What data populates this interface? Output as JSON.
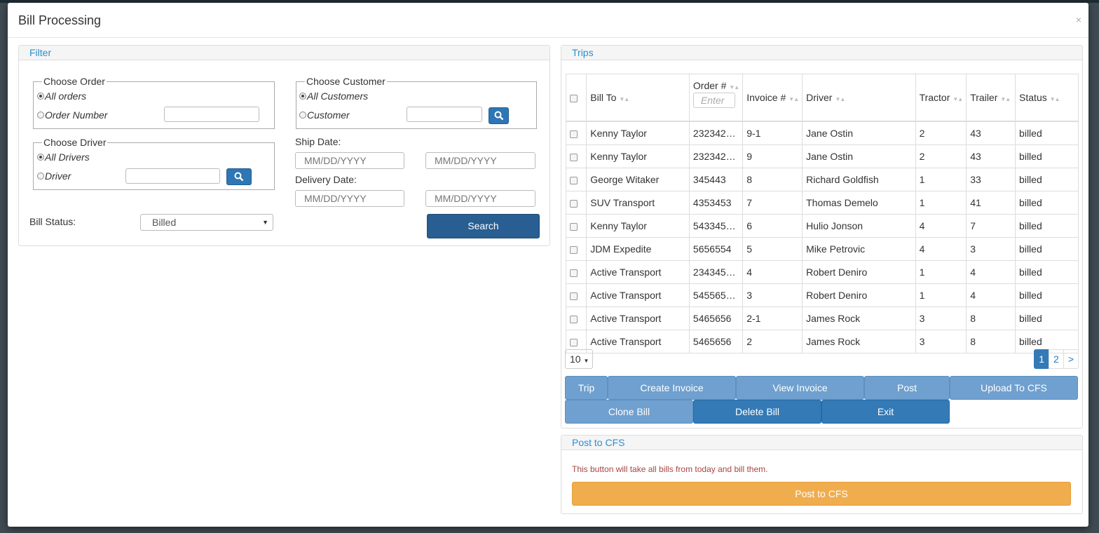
{
  "modal": {
    "title": "Bill Processing",
    "close": "×"
  },
  "filter": {
    "heading": "Filter",
    "choose_order": {
      "legend": "Choose Order",
      "all_label": "All orders",
      "specific_label": "Order Number"
    },
    "choose_driver": {
      "legend": "Choose Driver",
      "all_label": "All Drivers",
      "specific_label": "Driver"
    },
    "choose_customer": {
      "legend": "Choose Customer",
      "all_label": "All Customers",
      "specific_label": "Customer"
    },
    "ship_date": {
      "label": "Ship Date:",
      "from_placeholder": "MM/DD/YYYY",
      "to_placeholder": "MM/DD/YYYY"
    },
    "delivery_date": {
      "label": "Delivery Date:",
      "from_placeholder": "MM/DD/YYYY",
      "to_placeholder": "MM/DD/YYYY"
    },
    "bill_status": {
      "label": "Bill Status:",
      "value": "Billed"
    },
    "search_label": "Search"
  },
  "trips": {
    "heading": "Trips",
    "columns": {
      "bill_to": "Bill To",
      "order": "Order #",
      "order_filter_placeholder": "Enter",
      "invoice": "Invoice #",
      "driver": "Driver",
      "tractor": "Tractor",
      "trailer": "Trailer",
      "status": "Status"
    },
    "rows": [
      {
        "bill_to": "Kenny Taylor",
        "order": "232342…",
        "invoice": "9-1",
        "driver": "Jane Ostin",
        "tractor": "2",
        "trailer": "43",
        "status": "billed"
      },
      {
        "bill_to": "Kenny Taylor",
        "order": "232342…",
        "invoice": "9",
        "driver": "Jane Ostin",
        "tractor": "2",
        "trailer": "43",
        "status": "billed"
      },
      {
        "bill_to": "George Witaker",
        "order": "345443",
        "invoice": "8",
        "driver": "Richard Goldfish",
        "tractor": "1",
        "trailer": "33",
        "status": "billed"
      },
      {
        "bill_to": "SUV Transport",
        "order": "4353453",
        "invoice": "7",
        "driver": "Thomas Demelo",
        "tractor": "1",
        "trailer": "41",
        "status": "billed"
      },
      {
        "bill_to": "Kenny Taylor",
        "order": "543345…",
        "invoice": "6",
        "driver": "Hulio Jonson",
        "tractor": "4",
        "trailer": "7",
        "status": "billed"
      },
      {
        "bill_to": "JDM Expedite",
        "order": "5656554",
        "invoice": "5",
        "driver": "Mike Petrovic",
        "tractor": "4",
        "trailer": "3",
        "status": "billed"
      },
      {
        "bill_to": "Active Transport",
        "order": "234345…",
        "invoice": "4",
        "driver": "Robert Deniro",
        "tractor": "1",
        "trailer": "4",
        "status": "billed"
      },
      {
        "bill_to": "Active Transport",
        "order": "545565…",
        "invoice": "3",
        "driver": "Robert Deniro",
        "tractor": "1",
        "trailer": "4",
        "status": "billed"
      },
      {
        "bill_to": "Active Transport",
        "order": "5465656",
        "invoice": "2-1",
        "driver": "James Rock",
        "tractor": "3",
        "trailer": "8",
        "status": "billed"
      },
      {
        "bill_to": "Active Transport",
        "order": "5465656",
        "invoice": "2",
        "driver": "James Rock",
        "tractor": "3",
        "trailer": "8",
        "status": "billed"
      }
    ],
    "page_size": "10",
    "pages": [
      "1",
      "2",
      ">"
    ],
    "actions": {
      "trip": "Trip",
      "create_invoice": "Create Invoice",
      "view_invoice": "View Invoice",
      "post": "Post",
      "upload_cfs": "Upload To CFS",
      "clone_bill": "Clone Bill",
      "delete_bill": "Delete Bill",
      "exit": "Exit"
    }
  },
  "post_cfs": {
    "heading": "Post to CFS",
    "note": "This button will take all bills from today and bill them.",
    "button": "Post to CFS"
  },
  "colors": {
    "primary": "#337ab7",
    "primary_light": "#6fa0cf",
    "warning": "#f0ad4e",
    "danger_text": "#a94442",
    "heading_blue": "#2a8fd0"
  }
}
